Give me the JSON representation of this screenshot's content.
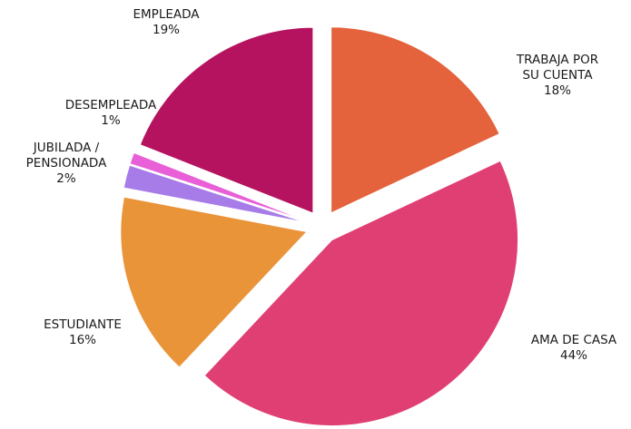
{
  "chart_data": {
    "type": "pie",
    "categories": [
      "TRABAJA POR SU CUENTA",
      "AMA DE CASA",
      "ESTUDIANTE",
      "JUBILADA / PENSIONADA",
      "DESEMPLEADA",
      "EMPLEADA"
    ],
    "values": [
      18,
      44,
      16,
      2,
      1,
      19
    ],
    "value_labels": [
      "18%",
      "44%",
      "16%",
      "2%",
      "1%",
      "19%"
    ],
    "colors": [
      "#e4623c",
      "#e03f73",
      "#ea943a",
      "#a77ce8",
      "#e85fd8",
      "#b5135f"
    ]
  }
}
